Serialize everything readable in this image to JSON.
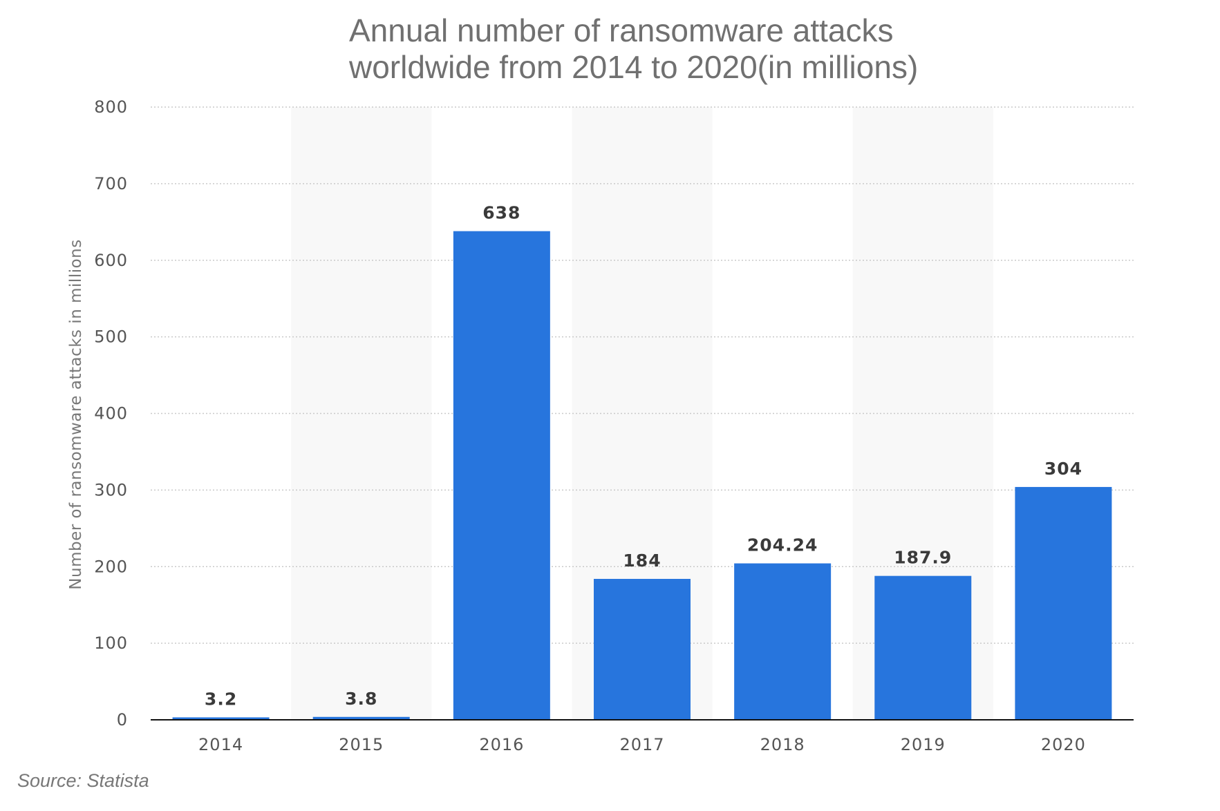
{
  "chart_data": {
    "type": "bar",
    "title_lines": [
      "Annual number of ransomware attacks",
      "worldwide from 2014 to 2020(in millions)"
    ],
    "categories": [
      "2014",
      "2015",
      "2016",
      "2017",
      "2018",
      "2019",
      "2020"
    ],
    "values": [
      3.2,
      3.8,
      638,
      184,
      204.24,
      187.9,
      304
    ],
    "value_labels": [
      "3.2",
      "3.8",
      "638",
      "184",
      "204.24",
      "187.9",
      "304"
    ],
    "ylabel": "Number of ransomware attacks in millions",
    "xlabel": "",
    "ylim": [
      0,
      800
    ],
    "yticks": [
      0,
      100,
      200,
      300,
      400,
      500,
      600,
      700,
      800
    ],
    "grid": true,
    "legend": "none",
    "bar_color": "#2775DD",
    "band_color": "#F8F8F8"
  },
  "source": "Source: Statista"
}
